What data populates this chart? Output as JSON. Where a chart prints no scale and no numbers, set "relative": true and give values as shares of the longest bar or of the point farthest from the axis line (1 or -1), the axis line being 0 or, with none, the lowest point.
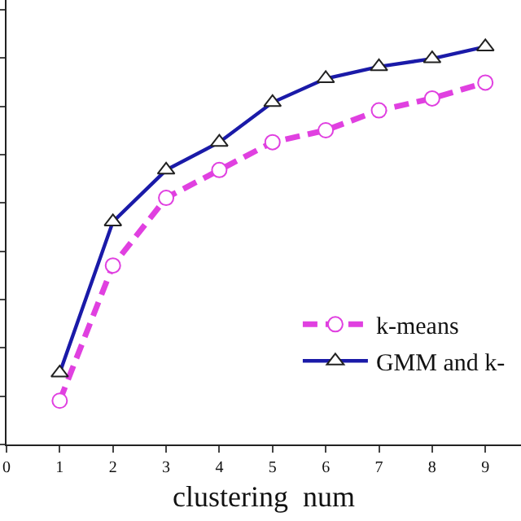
{
  "chart_data": {
    "type": "line",
    "xlabel": "clustering  num",
    "relative": true,
    "x": [
      1,
      2,
      3,
      4,
      5,
      6,
      7,
      8,
      9
    ],
    "xlim": [
      0,
      9.67
    ],
    "xticks": [
      0,
      1,
      2,
      3,
      4,
      5,
      6,
      7,
      8,
      9
    ],
    "tick_labels": "x",
    "legend": "bottom right",
    "series": [
      {
        "name": "k-means",
        "color": "#e040e0",
        "marker": "circle",
        "line_style": "dashed",
        "values": [
          0.11,
          0.45,
          0.62,
          0.69,
          0.76,
          0.79,
          0.84,
          0.87,
          0.91
        ]
      },
      {
        "name": "GMM and k-",
        "color": "#1a1aa8",
        "marker": "triangle",
        "line_style": "solid",
        "values": [
          0.18,
          0.56,
          0.69,
          0.76,
          0.86,
          0.92,
          0.95,
          0.97,
          1
        ]
      }
    ]
  }
}
